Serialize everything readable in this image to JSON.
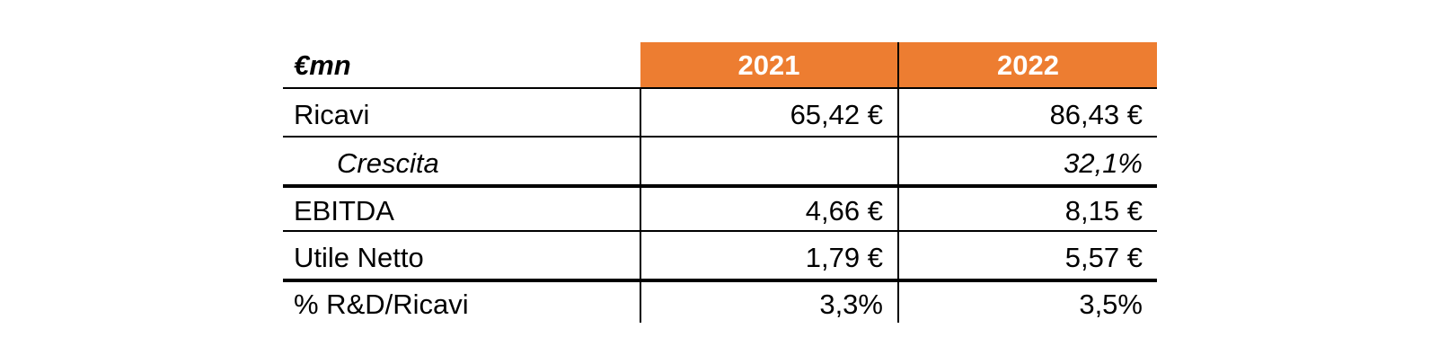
{
  "table": {
    "unit_label": "€mn",
    "columns": [
      "2021",
      "2022"
    ],
    "rows": [
      {
        "label": "Ricavi",
        "values": [
          "65,42 €",
          "86,43 €"
        ]
      },
      {
        "label": "Crescita",
        "values": [
          "",
          "32,1%"
        ]
      },
      {
        "label": "EBITDA",
        "values": [
          "4,66 €",
          "8,15 €"
        ]
      },
      {
        "label": "Utile Netto",
        "values": [
          "1,79 €",
          "5,57 €"
        ]
      },
      {
        "label": "% R&D/Ricavi",
        "values": [
          "3,3%",
          "3,5%"
        ]
      }
    ],
    "colors": {
      "header_bg": "#ED7D31",
      "header_text": "#FFFFFF",
      "body_text": "#000000",
      "border": "#000000"
    }
  },
  "chart_data": {
    "type": "table",
    "title": "",
    "unit_label": "€mn",
    "columns": [
      "2021",
      "2022"
    ],
    "rows": [
      {
        "label": "Ricavi",
        "values": [
          65.42,
          86.43
        ],
        "format": "eur_mn"
      },
      {
        "label": "Crescita",
        "values": [
          null,
          32.1
        ],
        "format": "percent",
        "note": "yoy growth of Ricavi, italic row"
      },
      {
        "label": "EBITDA",
        "values": [
          4.66,
          8.15
        ],
        "format": "eur_mn"
      },
      {
        "label": "Utile Netto",
        "values": [
          1.79,
          5.57
        ],
        "format": "eur_mn"
      },
      {
        "label": "% R&D/Ricavi",
        "values": [
          3.3,
          3.5
        ],
        "format": "percent"
      }
    ],
    "layout": {
      "header_fill": "#ED7D31",
      "thick_separators_below": [
        "Crescita",
        "Utile Netto"
      ],
      "thin_separators_below": [
        "header",
        "Ricavi",
        "EBITDA"
      ],
      "bottom_border": false
    }
  }
}
